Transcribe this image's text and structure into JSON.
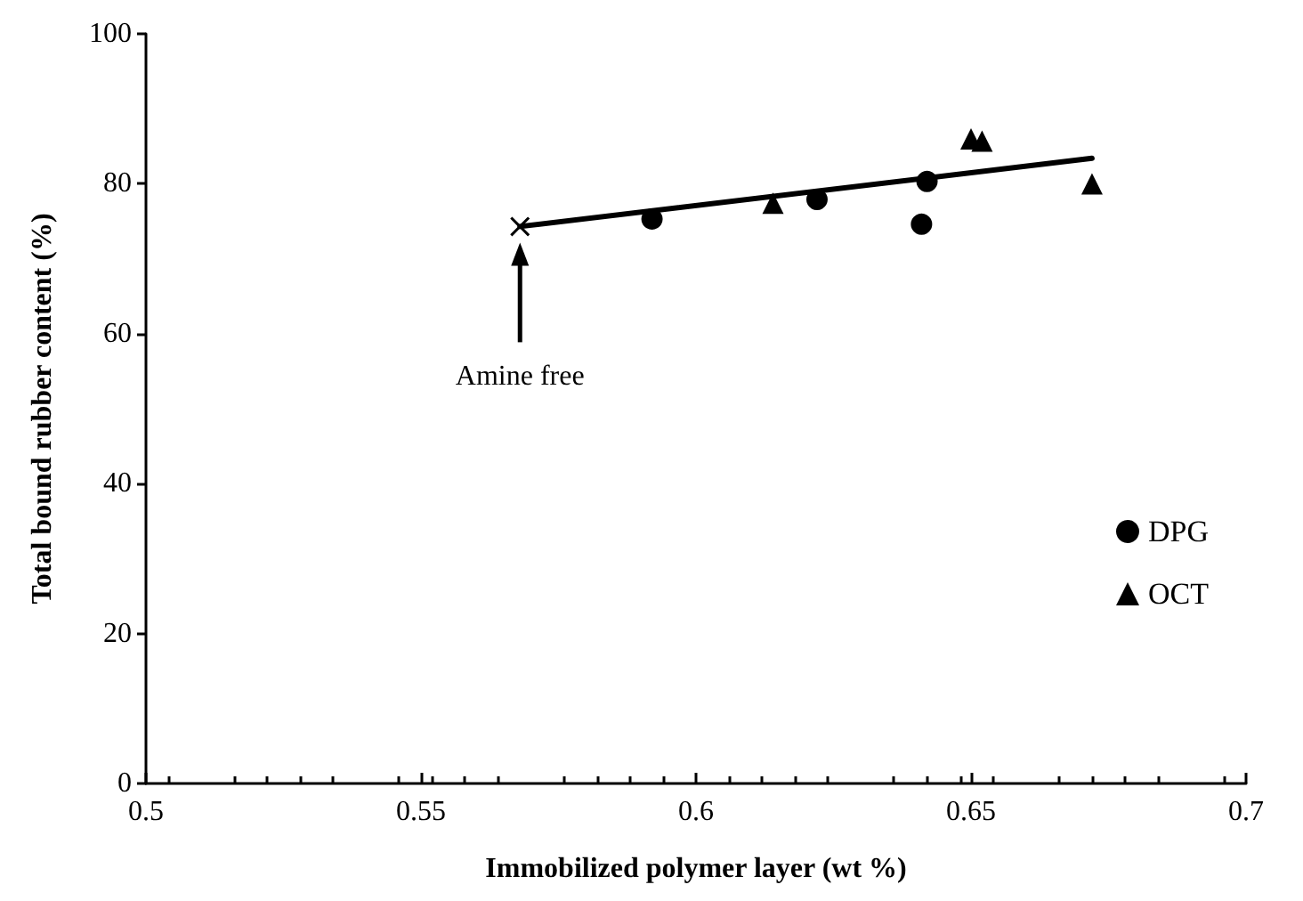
{
  "chart_data": {
    "type": "scatter",
    "xlabel": "Immobilized polymer layer (wt %)",
    "ylabel": "Total bound rubber content (%)",
    "xlim": [
      0.5,
      0.7
    ],
    "xticks": [
      0.5,
      0.55,
      0.6,
      0.65,
      0.7
    ],
    "ylim": [
      0,
      100
    ],
    "yticks": [
      0,
      20,
      40,
      60,
      80,
      100
    ],
    "grid": false,
    "legend": "right",
    "annotations": [
      "Amine free"
    ],
    "series": [
      {
        "name": "DPG",
        "color": "#000000",
        "marker": "circle",
        "x": [
          0.592,
          0.622,
          0.642,
          0.641
        ],
        "values": [
          75.3,
          77.9,
          80.3,
          74.6
        ]
      },
      {
        "name": "OCT",
        "color": "#000000",
        "marker": "triangle",
        "x": [
          0.614,
          0.65,
          0.652,
          0.672
        ],
        "values": [
          77.4,
          86.0,
          85.7,
          80.0
        ]
      },
      {
        "color": "#000000",
        "marker": "cross",
        "x": [
          0.568
        ],
        "values": [
          74.3
        ]
      },
      {
        "type": "line",
        "color": "#000000",
        "marker": "none",
        "line_style": "solid",
        "x": [
          0.568,
          0.672
        ],
        "values": [
          74.3,
          83.4
        ]
      }
    ]
  }
}
